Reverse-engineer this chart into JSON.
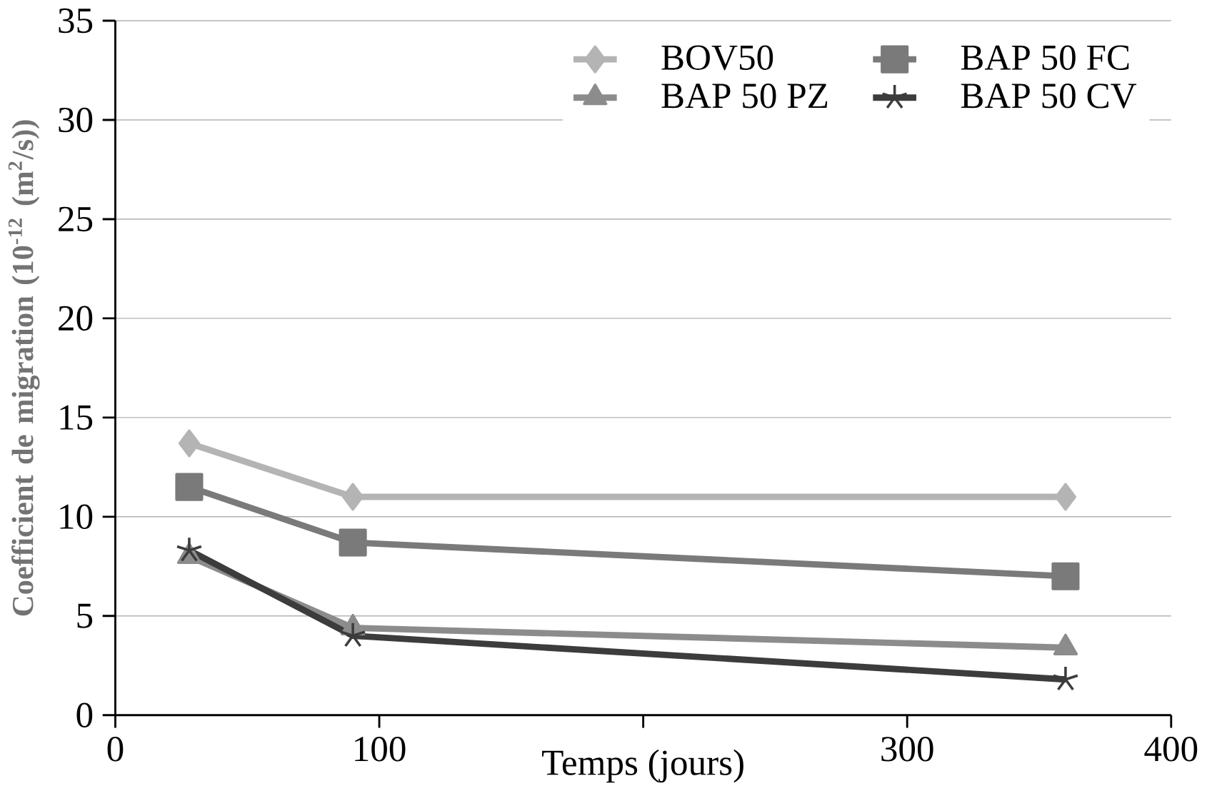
{
  "chart_data": {
    "type": "line",
    "xlabel": "Temps (jours)",
    "ylabel": "Coefficient de migration (10$^{-12}$ (m$^{2}$/s))",
    "x": [
      28,
      90,
      360
    ],
    "series": [
      {
        "name": "BOV50",
        "color": "#b4b4b4",
        "marker": "diamond",
        "values": [
          13.7,
          11.0,
          11.0
        ]
      },
      {
        "name": "BAP 50 FC",
        "color": "#7a7a7a",
        "marker": "square",
        "values": [
          11.5,
          8.7,
          7.0
        ]
      },
      {
        "name": "BAP 50 PZ",
        "color": "#8c8c8c",
        "marker": "triangle",
        "values": [
          8.0,
          4.4,
          3.4
        ]
      },
      {
        "name": "BAP 50 CV",
        "color": "#3c3c3c",
        "marker": "cross",
        "values": [
          8.3,
          4.0,
          1.8
        ]
      }
    ],
    "xlim": [
      0,
      400
    ],
    "xticks": [
      0,
      100,
      {
        "value": 200,
        "label": null
      },
      300,
      400
    ],
    "ylim": [
      0,
      35
    ],
    "yticks": [
      0,
      5,
      10,
      15,
      20,
      25,
      30,
      35
    ],
    "grid": "y",
    "legend": "top right",
    "line_style": "solid"
  }
}
